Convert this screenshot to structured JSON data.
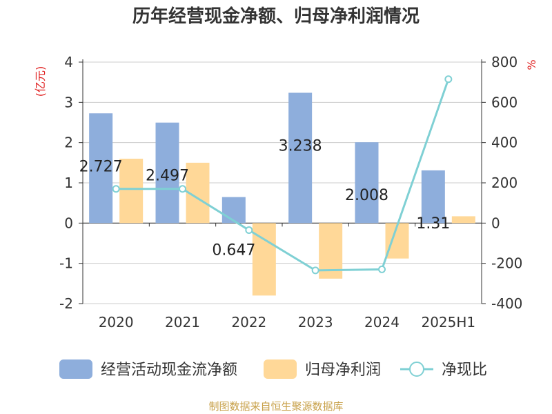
{
  "title": "历年经营现金净额、归母净利润情况",
  "source": "制图数据来自恒生聚源数据库",
  "chart_data": {
    "type": "bar",
    "categories": [
      "2020",
      "2021",
      "2022",
      "2023",
      "2024",
      "2025H1"
    ],
    "series": [
      {
        "name": "经营活动现金流净额",
        "kind": "bar",
        "axis": "left",
        "color": "#8eaedc",
        "values": [
          2.727,
          2.497,
          0.647,
          3.238,
          2.008,
          1.31
        ],
        "labels": [
          "2.727",
          "2.497",
          "0.647",
          "3.238",
          "2.008",
          "1.31"
        ]
      },
      {
        "name": "归母净利润",
        "kind": "bar",
        "axis": "left",
        "color": "#ffd898",
        "values": [
          1.6,
          1.5,
          -1.8,
          -1.38,
          -0.88,
          0.17
        ]
      },
      {
        "name": "净现比",
        "kind": "line",
        "axis": "right",
        "color": "#7fd0d4",
        "values": [
          170,
          170,
          -35,
          -235,
          -230,
          715
        ]
      }
    ],
    "left_axis": {
      "unit": "(亿元)",
      "ylim": [
        -2,
        4
      ],
      "ticks": [
        "4",
        "3",
        "2",
        "1",
        "0",
        "-1",
        "-2"
      ]
    },
    "right_axis": {
      "unit": "%",
      "ylim": [
        -400,
        800
      ],
      "ticks": [
        "800",
        "600",
        "400",
        "200",
        "0",
        "-200",
        "-400"
      ]
    },
    "grid": true,
    "legend_position": "bottom"
  }
}
